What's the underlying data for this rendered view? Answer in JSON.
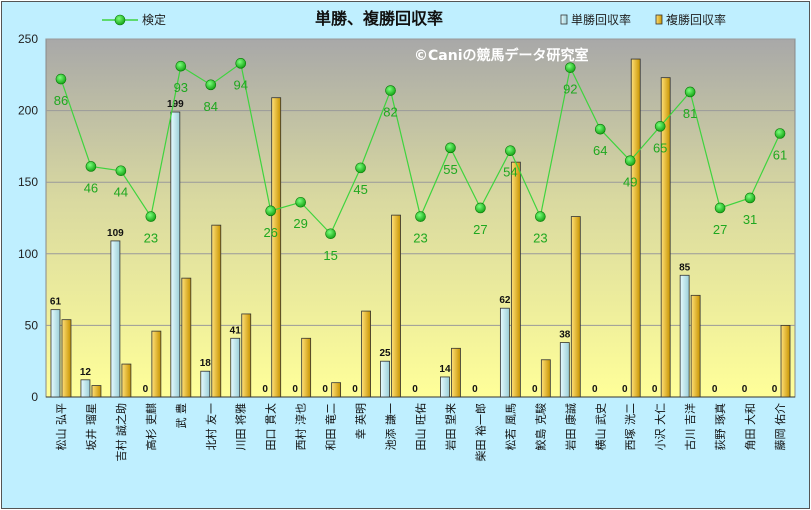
{
  "chart_data": {
    "type": "bar",
    "title": "単勝、複勝回収率",
    "watermark": "©Caniの競馬データ研究室",
    "ylim": [
      0,
      250
    ],
    "yticks": [
      0,
      50,
      100,
      150,
      200,
      250
    ],
    "legend_position": "top",
    "grid": true,
    "categories": [
      "松山 弘平",
      "坂井 瑠星",
      "吉村 誠之助",
      "高杉 吏麒",
      "武 豊",
      "北村 友一",
      "川田 将雅",
      "田口 貫太",
      "西村 淳也",
      "和田 竜二",
      "幸 英明",
      "池添 謙一",
      "田山 旺佑",
      "岩田 望来",
      "柴田 裕一郎",
      "松若 風馬",
      "鮫島 克駿",
      "岩田 康誠",
      "横山 武史",
      "西塚 洸二",
      "小沢 大仁",
      "古川 吉洋",
      "荻野 琢真",
      "角田 大和",
      "藤岡 佑介"
    ],
    "series": [
      {
        "name": "単勝回収率",
        "kind": "bar",
        "color": "#c6f0f5",
        "values": [
          61,
          12,
          109,
          0,
          199,
          18,
          41,
          0,
          0,
          0,
          0,
          25,
          0,
          14,
          0,
          62,
          0,
          38,
          0,
          0,
          0,
          85,
          0,
          0,
          0
        ]
      },
      {
        "name": "複勝回収率",
        "kind": "bar",
        "color": "#f0c020",
        "values": [
          54,
          8,
          23,
          46,
          83,
          120,
          58,
          209,
          41,
          10,
          60,
          127,
          0,
          34,
          0,
          164,
          26,
          126,
          0,
          236,
          223,
          71,
          0,
          0,
          50
        ]
      },
      {
        "name": "検定",
        "kind": "line",
        "color": "#2ec82e",
        "values": [
          222,
          161,
          158,
          126,
          231,
          218,
          233,
          130,
          136,
          114,
          160,
          214,
          126,
          174,
          132,
          172,
          126,
          230,
          187,
          165,
          189,
          213,
          132,
          139,
          184
        ],
        "labels": [
          86,
          46,
          44,
          23,
          93,
          84,
          94,
          26,
          29,
          15,
          45,
          82,
          23,
          55,
          27,
          54,
          23,
          92,
          64,
          49,
          65,
          81,
          27,
          31,
          61
        ]
      }
    ],
    "single_bar_labels": [
      61,
      12,
      109,
      0,
      199,
      18,
      41,
      0,
      0,
      0,
      0,
      25,
      0,
      14,
      0,
      62,
      0,
      38,
      0,
      0,
      0,
      85,
      0,
      0,
      0
    ]
  }
}
